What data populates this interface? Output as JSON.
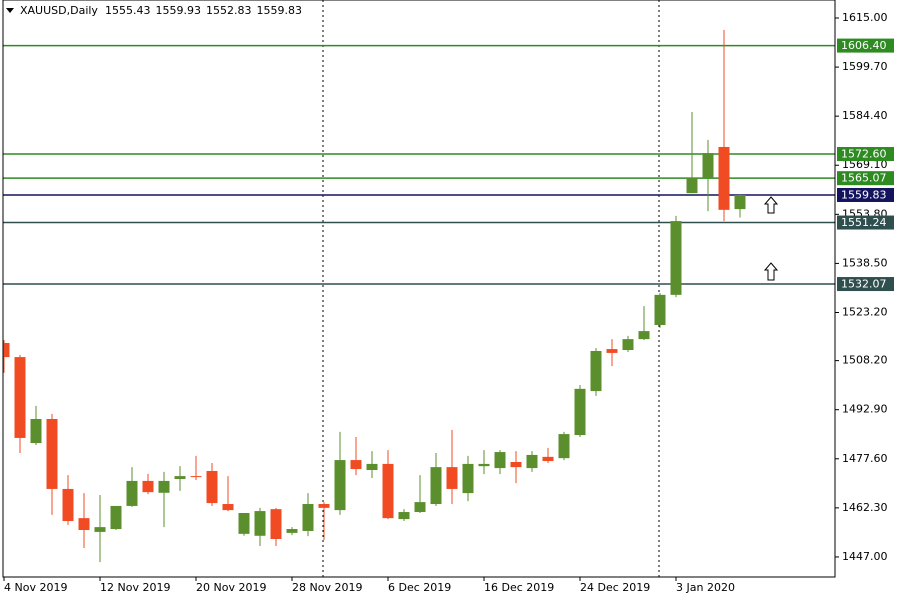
{
  "chart_data": {
    "type": "candlestick",
    "title": "XAUUSD,Daily",
    "quote": [
      1555.43,
      1559.93,
      1552.83,
      1559.83
    ],
    "categories": [
      "4 Nov 2019",
      null,
      null,
      null,
      null,
      null,
      "12 Nov 2019",
      null,
      null,
      null,
      null,
      null,
      "20 Nov 2019",
      null,
      null,
      null,
      null,
      null,
      "28 Nov 2019",
      null,
      null,
      null,
      null,
      null,
      "6 Dec 2019",
      null,
      null,
      null,
      null,
      null,
      "16 Dec 2019",
      null,
      null,
      null,
      null,
      null,
      "24 Dec 2019",
      null,
      null,
      null,
      null,
      null,
      "3 Jan 2020",
      null,
      null,
      null,
      null
    ],
    "open": [
      1513.7,
      1509.3,
      1482.5,
      1490.0,
      1468.2,
      1459.1,
      1454.8,
      1455.7,
      1462.9,
      1470.7,
      1467.0,
      1471.3,
      1472.2,
      1473.8,
      1463.5,
      1454.2,
      1453.6,
      1461.9,
      1454.5,
      1455.1,
      1463.5,
      1461.6,
      1477.2,
      1474.1,
      1476.0,
      1458.8,
      1461.0,
      1463.5,
      1475.0,
      1466.9,
      1475.3,
      1474.7,
      1476.6,
      1474.7,
      1478.2,
      1477.8,
      1485.0,
      1498.7,
      1511.8,
      1511.5,
      1514.9,
      1519.3,
      1528.7,
      1560.4,
      1565.1,
      1574.8,
      1555.43
    ],
    "high": [
      1514.6,
      1510.0,
      1494.1,
      1491.6,
      1472.5,
      1466.9,
      1466.3,
      1462.9,
      1475.0,
      1472.9,
      1473.5,
      1475.3,
      1478.5,
      1476.3,
      1472.2,
      1460.7,
      1462.3,
      1462.3,
      1456.3,
      1466.9,
      1464.1,
      1486.0,
      1484.4,
      1480.0,
      1480.3,
      1461.9,
      1472.5,
      1479.4,
      1486.6,
      1478.5,
      1480.3,
      1480.3,
      1480.0,
      1480.0,
      1481.0,
      1486.0,
      1500.6,
      1512.1,
      1514.9,
      1515.9,
      1525.2,
      1529.3,
      1553.3,
      1585.7,
      1577.0,
      1611.3,
      1559.93
    ],
    "low": [
      1504.4,
      1479.4,
      1481.9,
      1460.1,
      1457.0,
      1449.8,
      1445.4,
      1455.4,
      1462.6,
      1466.6,
      1456.3,
      1467.6,
      1471.0,
      1462.9,
      1461.3,
      1453.6,
      1450.4,
      1450.4,
      1453.8,
      1453.5,
      1452.3,
      1460.1,
      1472.5,
      1471.6,
      1458.8,
      1458.2,
      1460.7,
      1462.9,
      1463.5,
      1464.4,
      1472.8,
      1472.8,
      1470.0,
      1473.5,
      1476.3,
      1477.2,
      1484.4,
      1497.2,
      1506.5,
      1510.9,
      1514.6,
      1518.4,
      1528.0,
      1560.4,
      1554.8,
      1551.7,
      1552.83
    ],
    "close": [
      1509.3,
      1484.1,
      1490.0,
      1468.2,
      1458.2,
      1455.4,
      1456.3,
      1462.9,
      1470.7,
      1467.2,
      1470.7,
      1472.2,
      1471.9,
      1463.8,
      1461.6,
      1460.7,
      1461.3,
      1452.6,
      1455.7,
      1463.5,
      1462.3,
      1477.2,
      1474.4,
      1476.0,
      1459.1,
      1461.0,
      1464.1,
      1475.0,
      1468.2,
      1476.0,
      1476.0,
      1479.7,
      1475.0,
      1478.8,
      1476.9,
      1485.3,
      1499.4,
      1511.2,
      1510.6,
      1514.9,
      1517.4,
      1528.7,
      1551.7,
      1565.1,
      1572.9,
      1555.2,
      1559.83
    ],
    "up_color": "#5b8f2e",
    "down_color": "#f04b23",
    "ylim": [
      1440.75,
      1620.61
    ],
    "yticks": [
      {
        "value": 1615,
        "label": "1615.00"
      },
      {
        "value": 1599.7,
        "label": "1599.70"
      },
      {
        "value": 1584.4,
        "label": "1584.40"
      },
      {
        "value": 1569.1,
        "label": "1569.10"
      },
      {
        "value": 1553.8,
        "label": "1553.80"
      },
      {
        "value": 1538.5,
        "label": "1538.50"
      },
      {
        "value": 1523.2,
        "label": "1523.20"
      },
      {
        "value": 1508.2,
        "label": "1508.20"
      },
      {
        "value": 1492.9,
        "label": "1492.90"
      },
      {
        "value": 1477.6,
        "label": "1477.60"
      },
      {
        "value": 1462.3,
        "label": "1462.30"
      },
      {
        "value": 1447,
        "label": "1447.00"
      }
    ],
    "levels": [
      {
        "value": 1606.4,
        "label": "1606.40",
        "color": "#2e8b22"
      },
      {
        "value": 1572.6,
        "label": "1572.60",
        "color": "#2e8b22"
      },
      {
        "value": 1565.07,
        "label": "1565.07",
        "color": "#2e8b22"
      },
      {
        "value": 1559.83,
        "label": "1559.83",
        "color": "#14145e"
      },
      {
        "value": 1551.24,
        "label": "1551.24",
        "color": "#2f4f4f"
      },
      {
        "value": 1532.07,
        "label": "1532.07",
        "color": "#2f4f4f"
      }
    ]
  }
}
